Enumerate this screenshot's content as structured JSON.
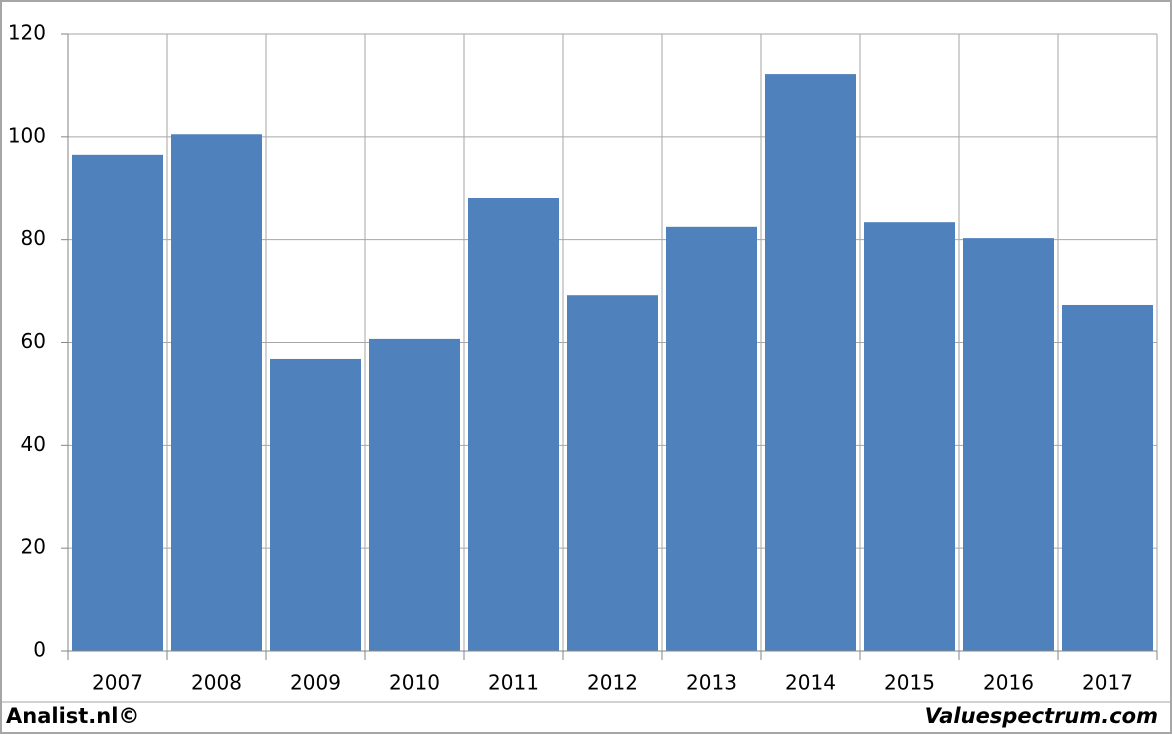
{
  "chart_data": {
    "type": "bar",
    "categories": [
      "2007",
      "2008",
      "2009",
      "2010",
      "2011",
      "2012",
      "2013",
      "2014",
      "2015",
      "2016",
      "2017"
    ],
    "values": [
      96.5,
      100.5,
      56.8,
      60.7,
      88.1,
      69.2,
      82.5,
      112.2,
      83.4,
      80.3,
      67.3
    ],
    "color": "#4f81bd",
    "ylim": [
      0,
      120
    ],
    "yticks": [
      0,
      20,
      40,
      60,
      80,
      100,
      120
    ],
    "grid": true
  },
  "footer": {
    "left": "Analist.nl©",
    "right": "Valuespectrum.com"
  }
}
